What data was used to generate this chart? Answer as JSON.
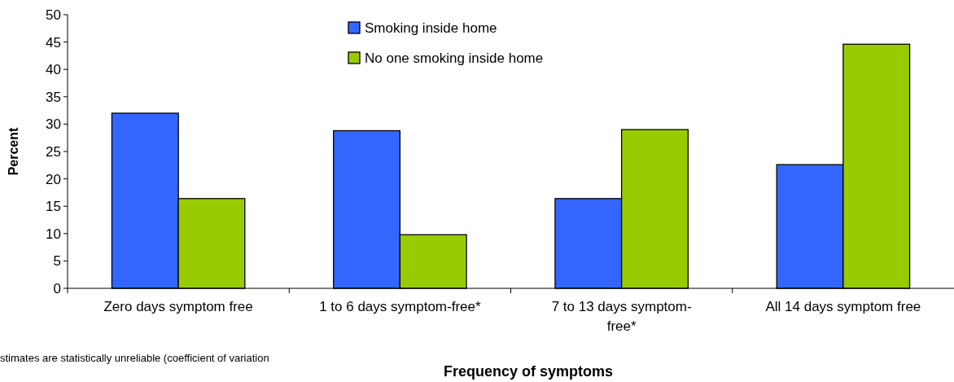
{
  "chart_data": {
    "type": "bar",
    "xlabel": "Frequency of symptoms",
    "ylabel": "Percent",
    "categories": [
      "Zero days symptom free",
      "1 to 6 days symptom-free*",
      "7 to 13 days symptom-free*",
      "All 14 days symptom free"
    ],
    "series": [
      {
        "name": "Smoking inside home",
        "color": "#3366ff",
        "values": [
          32.0,
          28.8,
          16.4,
          22.6
        ]
      },
      {
        "name": "No one smoking inside home",
        "color": "#99cc00",
        "values": [
          16.4,
          9.8,
          29.0,
          44.6
        ]
      }
    ],
    "ylim": [
      0,
      50
    ],
    "yticks": [
      0,
      5,
      10,
      15,
      20,
      25,
      30,
      35,
      40,
      45,
      50
    ],
    "grid": false,
    "legend": "top",
    "annotations": [
      "stimates are statistically unreliable (coefficient of variation"
    ]
  }
}
